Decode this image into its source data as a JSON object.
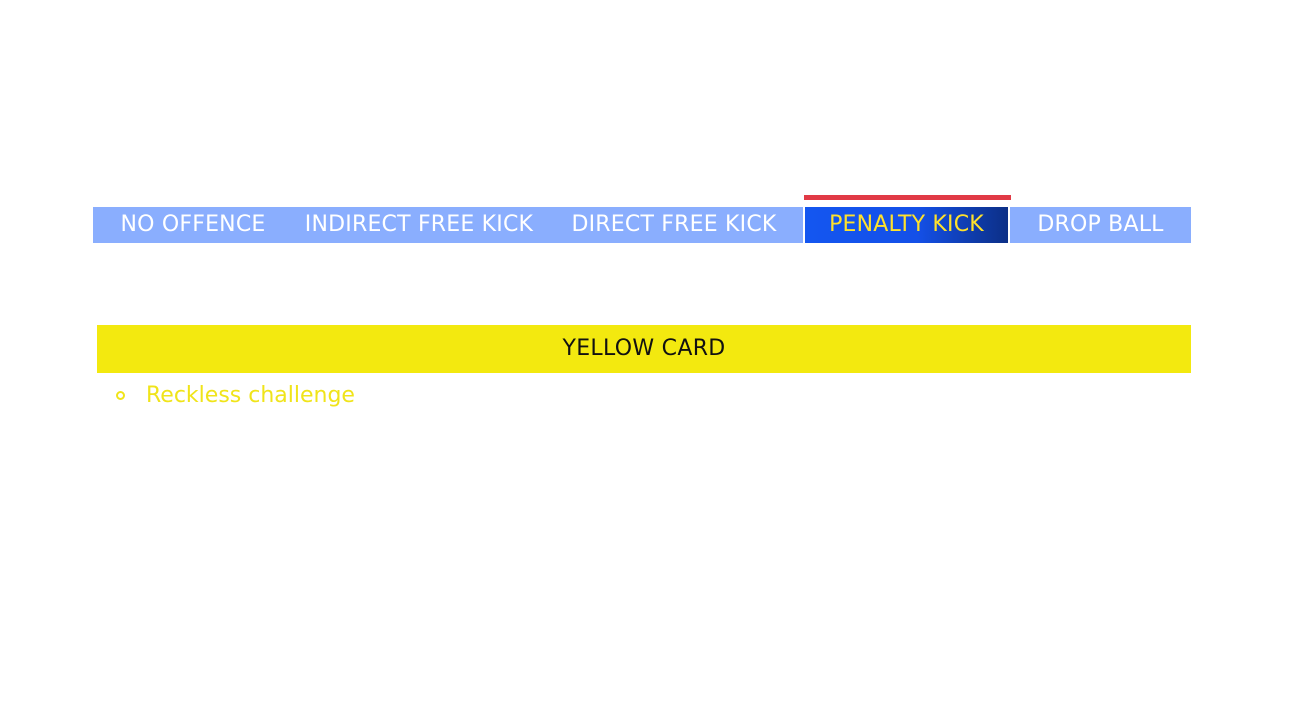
{
  "nav": {
    "tabs": [
      {
        "label": "NO OFFENCE",
        "active": false
      },
      {
        "label": "INDIRECT FREE KICK",
        "active": false
      },
      {
        "label": "DIRECT FREE KICK",
        "active": false
      },
      {
        "label": "PENALTY KICK",
        "active": true
      },
      {
        "label": "DROP BALL",
        "active": false
      }
    ]
  },
  "sanction": {
    "title": "YELLOW CARD",
    "items": [
      {
        "label": "Reckless challenge"
      }
    ]
  },
  "colors": {
    "tab_bar": "#8aaefe",
    "active_tab": "#1456f0",
    "active_text": "#ffe12b",
    "indicator": "#e13a46",
    "yellow_card": "#f3e90f"
  }
}
